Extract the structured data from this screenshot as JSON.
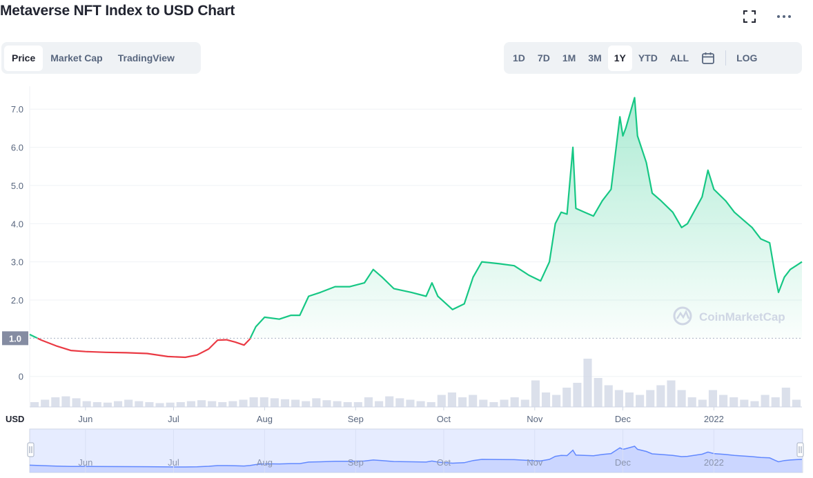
{
  "header": {
    "title": "Metaverse NFT Index to USD Chart",
    "fullscreen_icon": "expand-icon",
    "more_icon": "more-horizontal-icon"
  },
  "view_tabs": [
    {
      "label": "Price",
      "active": true
    },
    {
      "label": "Market Cap",
      "active": false
    },
    {
      "label": "TradingView",
      "active": false
    }
  ],
  "range_tabs": [
    {
      "label": "1D",
      "active": false
    },
    {
      "label": "7D",
      "active": false
    },
    {
      "label": "1M",
      "active": false
    },
    {
      "label": "3M",
      "active": false
    },
    {
      "label": "1Y",
      "active": true
    },
    {
      "label": "YTD",
      "active": false
    },
    {
      "label": "ALL",
      "active": false
    }
  ],
  "calendar_icon": "calendar-icon",
  "log_label": "LOG",
  "watermark": "CoinMarketCap",
  "colors": {
    "up": "#16c784",
    "down": "#ea3943",
    "volume": "#cfd6e4",
    "navigator": "#6188ff",
    "baseline_tag": "#858ca2"
  },
  "chart_data": {
    "type": "line",
    "title": "Metaverse NFT Index to USD Chart",
    "currency_label": "USD",
    "baseline": 1.0,
    "baseline_label": "1.0",
    "ylim": [
      -0.8,
      7.6
    ],
    "y_ticks": [
      "0",
      "2.0",
      "3.0",
      "4.0",
      "5.0",
      "6.0",
      "7.0"
    ],
    "y_tick_values": [
      0,
      2,
      3,
      4,
      5,
      6,
      7
    ],
    "x_labels": [
      "Jun",
      "Jul",
      "Aug",
      "Sep",
      "Oct",
      "Nov",
      "Dec",
      "2022"
    ],
    "x_label_dates": [
      "2021-06-01",
      "2021-07-01",
      "2021-08-01",
      "2021-09-01",
      "2021-10-01",
      "2021-11-01",
      "2021-12-01",
      "2022-01-01"
    ],
    "date_range": [
      "2021-05-13",
      "2022-01-31"
    ],
    "series": [
      {
        "values": [
          [
            "2021-05-13",
            1.1
          ],
          [
            "2021-05-17",
            0.95
          ],
          [
            "2021-05-22",
            0.8
          ],
          [
            "2021-05-27",
            0.68
          ],
          [
            "2021-06-01",
            0.65
          ],
          [
            "2021-06-08",
            0.63
          ],
          [
            "2021-06-15",
            0.62
          ],
          [
            "2021-06-22",
            0.6
          ],
          [
            "2021-06-29",
            0.52
          ],
          [
            "2021-07-05",
            0.5
          ],
          [
            "2021-07-09",
            0.56
          ],
          [
            "2021-07-13",
            0.72
          ],
          [
            "2021-07-16",
            0.95
          ],
          [
            "2021-07-19",
            0.96
          ],
          [
            "2021-07-22",
            0.9
          ],
          [
            "2021-07-25",
            0.82
          ],
          [
            "2021-07-27",
            0.98
          ],
          [
            "2021-07-29",
            1.3
          ],
          [
            "2021-08-01",
            1.55
          ],
          [
            "2021-08-06",
            1.5
          ],
          [
            "2021-08-10",
            1.6
          ],
          [
            "2021-08-13",
            1.6
          ],
          [
            "2021-08-16",
            2.1
          ],
          [
            "2021-08-20",
            2.2
          ],
          [
            "2021-08-25",
            2.35
          ],
          [
            "2021-08-30",
            2.35
          ],
          [
            "2021-09-04",
            2.45
          ],
          [
            "2021-09-07",
            2.8
          ],
          [
            "2021-09-10",
            2.6
          ],
          [
            "2021-09-14",
            2.3
          ],
          [
            "2021-09-20",
            2.2
          ],
          [
            "2021-09-25",
            2.1
          ],
          [
            "2021-09-27",
            2.45
          ],
          [
            "2021-09-29",
            2.1
          ],
          [
            "2021-10-04",
            1.75
          ],
          [
            "2021-10-08",
            1.9
          ],
          [
            "2021-10-11",
            2.6
          ],
          [
            "2021-10-14",
            3.0
          ],
          [
            "2021-10-20",
            2.95
          ],
          [
            "2021-10-25",
            2.9
          ],
          [
            "2021-10-30",
            2.65
          ],
          [
            "2021-11-03",
            2.5
          ],
          [
            "2021-11-06",
            3.0
          ],
          [
            "2021-11-08",
            4.0
          ],
          [
            "2021-11-10",
            4.3
          ],
          [
            "2021-11-12",
            4.25
          ],
          [
            "2021-11-14",
            6.0
          ],
          [
            "2021-11-15",
            4.4
          ],
          [
            "2021-11-18",
            4.3
          ],
          [
            "2021-11-21",
            4.2
          ],
          [
            "2021-11-24",
            4.6
          ],
          [
            "2021-11-27",
            4.9
          ],
          [
            "2021-11-30",
            6.8
          ],
          [
            "2021-12-01",
            6.3
          ],
          [
            "2021-12-02",
            6.5
          ],
          [
            "2021-12-05",
            7.3
          ],
          [
            "2021-12-06",
            6.3
          ],
          [
            "2021-12-09",
            5.6
          ],
          [
            "2021-12-11",
            4.8
          ],
          [
            "2021-12-14",
            4.6
          ],
          [
            "2021-12-18",
            4.3
          ],
          [
            "2021-12-21",
            3.9
          ],
          [
            "2021-12-23",
            4.0
          ],
          [
            "2021-12-28",
            4.7
          ],
          [
            "2021-12-30",
            5.4
          ],
          [
            "2022-01-01",
            4.9
          ],
          [
            "2022-01-05",
            4.6
          ],
          [
            "2022-01-08",
            4.3
          ],
          [
            "2022-01-11",
            4.1
          ],
          [
            "2022-01-14",
            3.9
          ],
          [
            "2022-01-17",
            3.6
          ],
          [
            "2022-01-20",
            3.5
          ],
          [
            "2022-01-22",
            2.6
          ],
          [
            "2022-01-23",
            2.2
          ],
          [
            "2022-01-25",
            2.6
          ],
          [
            "2022-01-27",
            2.8
          ],
          [
            "2022-01-29",
            2.9
          ],
          [
            "2022-01-31",
            3.0
          ]
        ]
      }
    ],
    "volume_note": "",
    "volume": [
      0.1,
      0.15,
      0.2,
      0.22,
      0.18,
      0.12,
      0.1,
      0.09,
      0.12,
      0.15,
      0.12,
      0.1,
      0.08,
      0.09,
      0.1,
      0.12,
      0.14,
      0.12,
      0.1,
      0.12,
      0.15,
      0.2,
      0.2,
      0.18,
      0.16,
      0.15,
      0.12,
      0.18,
      0.14,
      0.12,
      0.1,
      0.1,
      0.2,
      0.12,
      0.22,
      0.18,
      0.15,
      0.12,
      0.1,
      0.25,
      0.3,
      0.2,
      0.25,
      0.15,
      0.1,
      0.15,
      0.2,
      0.15,
      0.55,
      0.3,
      0.25,
      0.4,
      0.5,
      1.0,
      0.6,
      0.45,
      0.35,
      0.3,
      0.25,
      0.35,
      0.45,
      0.55,
      0.35,
      0.2,
      0.15,
      0.35,
      0.25,
      0.2,
      0.15,
      0.12,
      0.25,
      0.2,
      0.4,
      0.15
    ]
  },
  "navigator": {
    "x_labels": [
      "Jun",
      "Jul",
      "Aug",
      "Sep",
      "Oct",
      "Nov",
      "Dec",
      "2022"
    ],
    "handle_left": "drag-handle-icon",
    "handle_right": "drag-handle-icon"
  }
}
